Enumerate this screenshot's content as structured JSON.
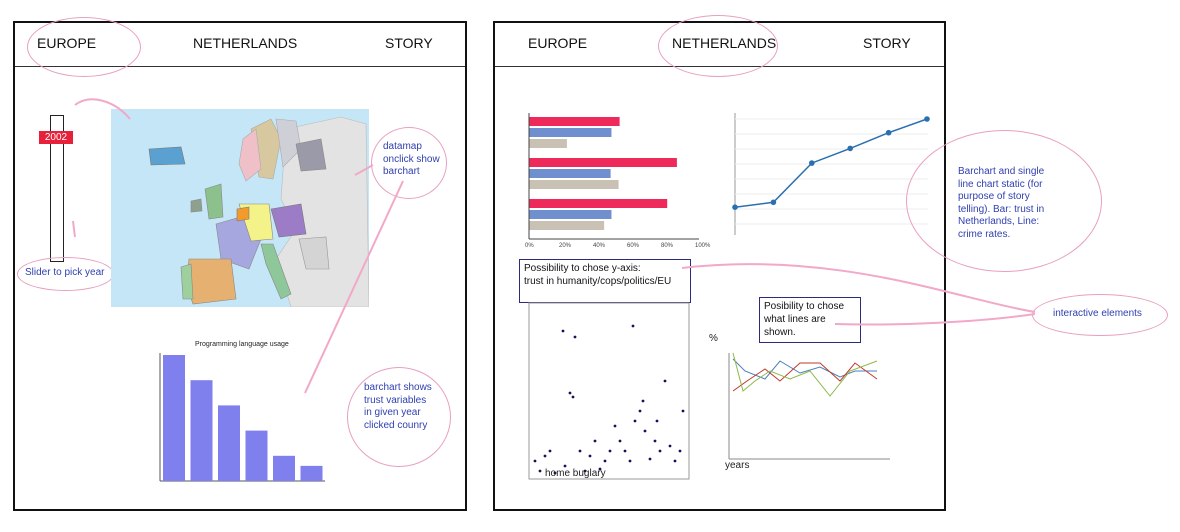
{
  "left": {
    "nav": {
      "europe": "EUROPE",
      "netherlands": "NETHERLANDS",
      "story": "STORY"
    },
    "slider": {
      "year": "2002",
      "label": "Slider to pick year"
    },
    "datamap_note": "datamap onclick show barchart",
    "barchart_title": "Programming language usage",
    "barchart_values": [
      10,
      8,
      6,
      4,
      2,
      1.2
    ],
    "barchart_note": "barchart shows trust variables in given year clicked counry"
  },
  "right": {
    "nav": {
      "europe": "EUROPE",
      "netherlands": "NETHERLANDS",
      "story": "STORY"
    },
    "bar_note": "Barchart and single line chart static (for purpose of story telling). Bar: trust in Netherlands, Line: crime rates.",
    "yaxis_box_title": "Possibility to chose y-axis:",
    "yaxis_box_body": "trust in humanity/cops/politics/EU",
    "lines_box": "Posibility to chose what lines are shown.",
    "interactive_note": "interactive elements",
    "scatter_xlabel": "home buglary",
    "lines_ylabel": "%",
    "lines_xlabel": "years",
    "hbar_ticks": [
      "0%",
      "20%",
      "40%",
      "60%",
      "80%",
      "100%"
    ],
    "hbar_values": [
      [
        53.3,
        48.5,
        22.3
      ],
      [
        87.0,
        48.0,
        52.7
      ],
      [
        81.3,
        48.5,
        44.2
      ]
    ],
    "line_values": [
      1,
      1.5,
      5.5,
      7,
      8.6,
      10
    ]
  },
  "colors": {
    "bar_pink": "#ee2a5a",
    "bar_blue": "#6f8fcf",
    "bar_grey": "#c9c1b3",
    "line_blue": "#2a6fb0",
    "oval_pink": "#e8a0c0"
  }
}
